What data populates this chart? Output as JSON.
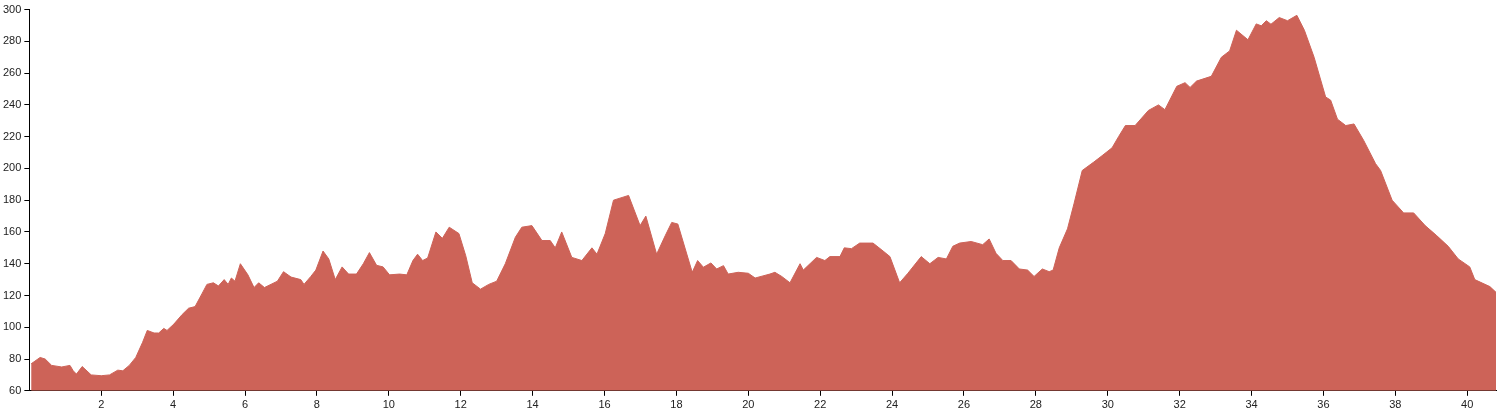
{
  "chart_data": {
    "type": "area",
    "color": "#cd6358",
    "grid": false,
    "legend": false,
    "marker": "none",
    "xlim": [
      0,
      40.8
    ],
    "ylim": [
      60,
      300
    ],
    "xticks": [
      2,
      4,
      6,
      8,
      10,
      12,
      14,
      16,
      18,
      20,
      22,
      24,
      26,
      28,
      30,
      32,
      34,
      36,
      38,
      40
    ],
    "yticks": [
      60,
      80,
      100,
      120,
      140,
      160,
      180,
      200,
      220,
      240,
      260,
      280,
      300
    ],
    "x": [
      0.05,
      0.3,
      0.44,
      0.62,
      0.9,
      1.13,
      1.22,
      1.31,
      1.47,
      1.72,
      2.0,
      2.23,
      2.46,
      2.6,
      2.78,
      2.96,
      3.15,
      3.28,
      3.47,
      3.6,
      3.74,
      3.83,
      4.02,
      4.25,
      4.43,
      4.61,
      4.8,
      4.94,
      5.12,
      5.26,
      5.42,
      5.53,
      5.62,
      5.72,
      5.87,
      6.08,
      6.25,
      6.38,
      6.54,
      6.9,
      7.07,
      7.28,
      7.55,
      7.64,
      7.83,
      7.97,
      8.17,
      8.33,
      8.51,
      8.7,
      8.88,
      9.1,
      9.29,
      9.46,
      9.66,
      9.84,
      10.02,
      10.3,
      10.5,
      10.67,
      10.8,
      10.94,
      11.08,
      11.31,
      11.49,
      11.68,
      11.95,
      12.14,
      12.32,
      12.55,
      12.78,
      13.0,
      13.24,
      13.52,
      13.7,
      13.98,
      14.26,
      14.49,
      14.63,
      14.81,
      15.09,
      15.37,
      15.65,
      15.79,
      16.02,
      16.25,
      16.67,
      16.99,
      17.15,
      17.45,
      17.69,
      17.87,
      18.04,
      18.44,
      18.59,
      18.75,
      18.96,
      19.12,
      19.31,
      19.44,
      19.72,
      20.0,
      20.19,
      20.6,
      20.74,
      20.93,
      21.16,
      21.44,
      21.53,
      21.9,
      22.13,
      22.27,
      22.55,
      22.67,
      22.87,
      23.1,
      23.47,
      23.75,
      23.94,
      24.21,
      24.44,
      24.81,
      25.05,
      25.28,
      25.51,
      25.69,
      25.88,
      26.2,
      26.52,
      26.7,
      26.89,
      27.08,
      27.31,
      27.54,
      27.77,
      27.95,
      28.18,
      28.37,
      28.48,
      28.65,
      28.88,
      29.06,
      29.29,
      29.61,
      29.84,
      30.12,
      30.3,
      30.49,
      30.76,
      31.13,
      31.41,
      31.59,
      31.92,
      32.15,
      32.29,
      32.47,
      32.88,
      33.16,
      33.39,
      33.58,
      33.9,
      34.13,
      34.27,
      34.41,
      34.54,
      34.77,
      35.0,
      35.26,
      35.47,
      35.74,
      36.06,
      36.2,
      36.39,
      36.62,
      36.85,
      37.12,
      37.45,
      37.59,
      37.91,
      38.23,
      38.51,
      38.83,
      39.15,
      39.47,
      39.75,
      40.07,
      40.21,
      40.63,
      40.8
    ],
    "values": [
      77,
      81,
      80,
      76,
      75,
      76,
      72.6,
      70.5,
      75.3,
      70,
      69.5,
      70,
      73,
      72.6,
      76,
      81,
      90.5,
      98,
      96.4,
      96.4,
      99.3,
      98,
      102,
      108,
      112,
      113,
      121,
      127,
      128,
      126,
      130,
      127,
      131,
      129,
      140,
      133,
      125,
      128,
      125,
      129,
      135,
      131.6,
      130,
      127,
      132,
      136,
      148,
      143,
      130,
      138,
      133.5,
      133.5,
      140,
      147,
      139,
      138,
      133,
      133.5,
      133,
      142,
      146,
      142,
      143.6,
      160,
      156,
      163,
      159,
      145,
      128,
      124,
      127,
      129,
      140,
      156.7,
      163,
      164,
      154.6,
      154.6,
      150,
      160,
      144,
      142,
      150,
      146,
      159,
      180,
      183,
      164,
      170,
      146,
      157.7,
      166,
      165,
      134.6,
      142,
      137.8,
      140.5,
      136.7,
      138.8,
      133.5,
      134.6,
      134,
      131,
      133.5,
      134.6,
      132,
      128,
      140,
      136,
      144,
      142,
      144.5,
      144.5,
      150,
      149.5,
      153,
      153,
      148,
      144.5,
      128,
      134,
      144.5,
      140,
      144,
      143,
      151,
      153,
      154,
      152,
      155.6,
      146.6,
      142,
      142,
      136.7,
      136,
      132,
      136.7,
      135,
      136,
      150,
      162,
      177.7,
      198.7,
      204,
      208,
      213,
      220,
      227,
      227,
      236.5,
      240,
      237,
      251.7,
      254,
      251,
      255,
      258,
      270,
      274,
      287,
      281,
      291,
      289.8,
      293,
      290.8,
      295,
      293,
      296.4,
      287,
      270,
      245,
      243,
      231,
      227,
      228,
      217.6,
      203,
      198.7,
      180,
      172,
      172,
      164,
      157.7,
      151,
      143,
      138,
      130,
      125.6,
      122
    ]
  }
}
